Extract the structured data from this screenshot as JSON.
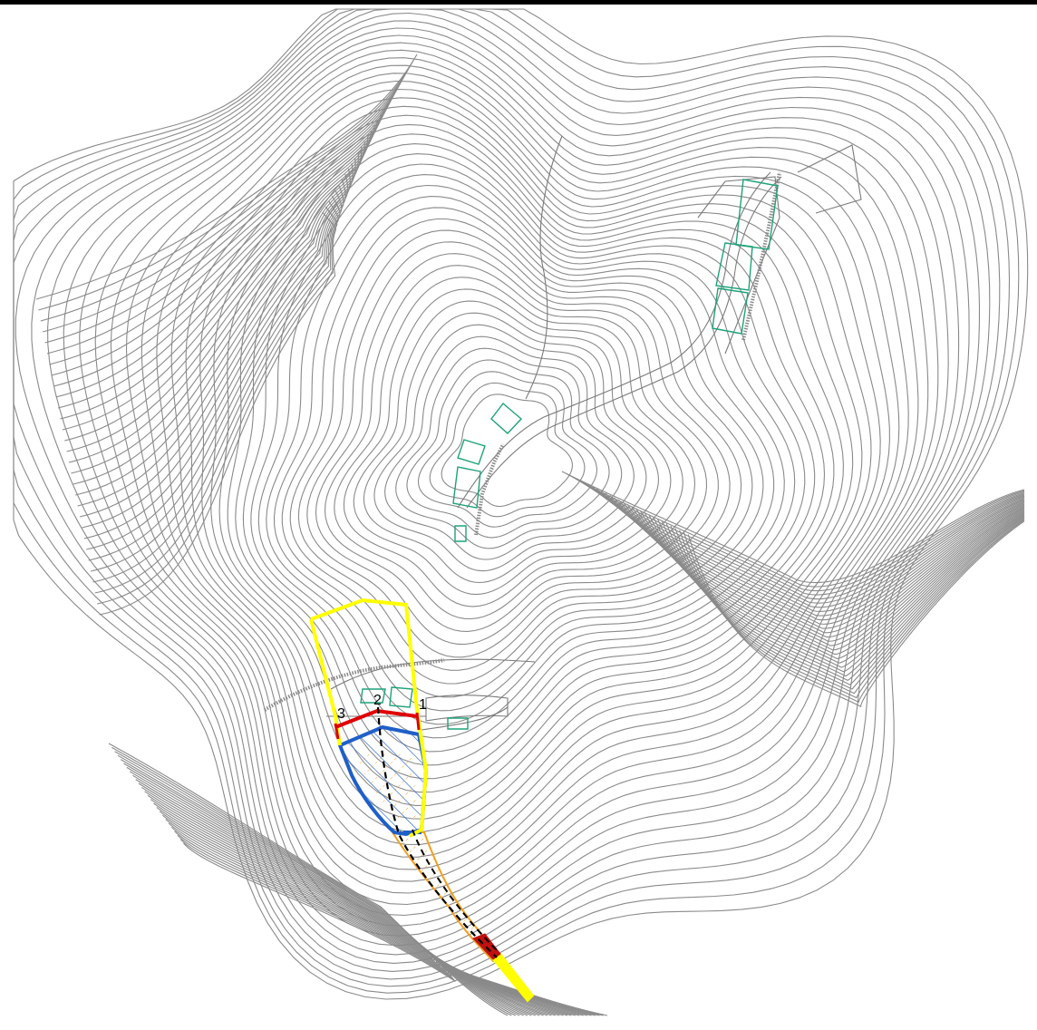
{
  "map": {
    "section_labels": [
      "1",
      "2",
      "3"
    ]
  },
  "colors": {
    "contour": "#8a8a8a",
    "building": "#1ea27a",
    "catchment_boundary": "#ffff00",
    "section_line": "#e00000",
    "deposit_zone": "#1f5fc8",
    "channel": "#f0a020",
    "flow_axis": "#000000"
  },
  "icons": {
    "hatching": "diagonal-hatch-pattern"
  }
}
